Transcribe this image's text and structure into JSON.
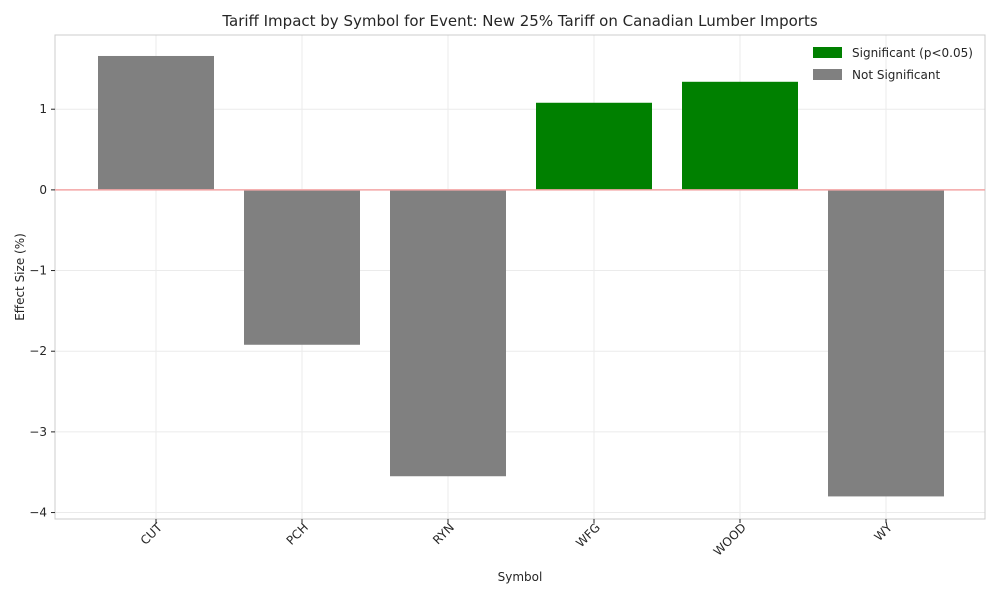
{
  "chart_data": {
    "type": "bar",
    "title": "Tariff Impact by Symbol for Event: New 25% Tariff on Canadian Lumber Imports",
    "xlabel": "Symbol",
    "ylabel": "Effect Size (%)",
    "categories": [
      "CUT",
      "PCH",
      "RYN",
      "WFG",
      "WOOD",
      "WY"
    ],
    "values": [
      1.66,
      -1.92,
      -3.55,
      1.08,
      1.34,
      -3.8
    ],
    "significant": [
      false,
      false,
      false,
      true,
      true,
      false
    ],
    "ylim": [
      -4.08,
      1.92
    ],
    "yticks": [
      1,
      0,
      -1,
      -2,
      -3,
      -4
    ],
    "ytick_labels": [
      "1",
      "0",
      "−1",
      "−2",
      "−3",
      "−4"
    ],
    "grid": true,
    "zero_line": true,
    "legend_position": "top-right",
    "legend": [
      {
        "label": "Significant (p<0.05)",
        "color": "#008000"
      },
      {
        "label": "Not Significant",
        "color": "#808080"
      }
    ],
    "colors": {
      "significant": "#008000",
      "not_significant": "#808080",
      "zero_line": "#f4a6a6",
      "grid": "#ebebeb",
      "frame": "#cccccc"
    }
  }
}
